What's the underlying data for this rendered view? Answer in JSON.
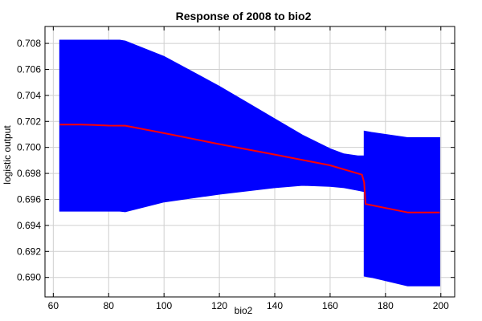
{
  "chart_data": {
    "type": "area",
    "title": "Response of 2008 to bio2",
    "xlabel": "bio2",
    "ylabel": "logistic output",
    "xlim": [
      57,
      205
    ],
    "ylim": [
      0.6885,
      0.7093
    ],
    "xticks": [
      60,
      80,
      100,
      120,
      140,
      160,
      180,
      200
    ],
    "yticks": [
      0.69,
      0.692,
      0.694,
      0.696,
      0.698,
      0.7,
      0.702,
      0.704,
      0.706,
      0.708
    ],
    "xtick_labels": [
      "60",
      "80",
      "100",
      "120",
      "140",
      "160",
      "180",
      "200"
    ],
    "ytick_labels": [
      "0.690",
      "0.692",
      "0.694",
      "0.696",
      "0.698",
      "0.700",
      "0.702",
      "0.704",
      "0.706",
      "0.708"
    ],
    "grid": true,
    "band": {
      "color": "#0000ff",
      "x": [
        62.3,
        72,
        84,
        86,
        100,
        120,
        140,
        150,
        160,
        165,
        170,
        172.3,
        172.3,
        175,
        188,
        199.6
      ],
      "upper": [
        0.70825,
        0.70825,
        0.70825,
        0.70818,
        0.707,
        0.7047,
        0.7022,
        0.70095,
        0.6999,
        0.6995,
        0.69935,
        0.69935,
        0.70125,
        0.70115,
        0.70075,
        0.70075
      ],
      "lower": [
        0.6951,
        0.6951,
        0.6951,
        0.69505,
        0.6958,
        0.6964,
        0.6969,
        0.69708,
        0.697,
        0.6969,
        0.6967,
        0.6966,
        0.6901,
        0.69,
        0.68935,
        0.68935
      ]
    },
    "series": [
      {
        "color": "#ff0000",
        "x": [
          62.3,
          70,
          75,
          80,
          86,
          100,
          120,
          140,
          160,
          171.5,
          172.3,
          172.8,
          188,
          199.6
        ],
        "y": [
          0.70175,
          0.70175,
          0.70172,
          0.70168,
          0.70167,
          0.7011,
          0.70025,
          0.69945,
          0.69862,
          0.6979,
          0.6973,
          0.69565,
          0.695,
          0.695
        ]
      }
    ]
  }
}
